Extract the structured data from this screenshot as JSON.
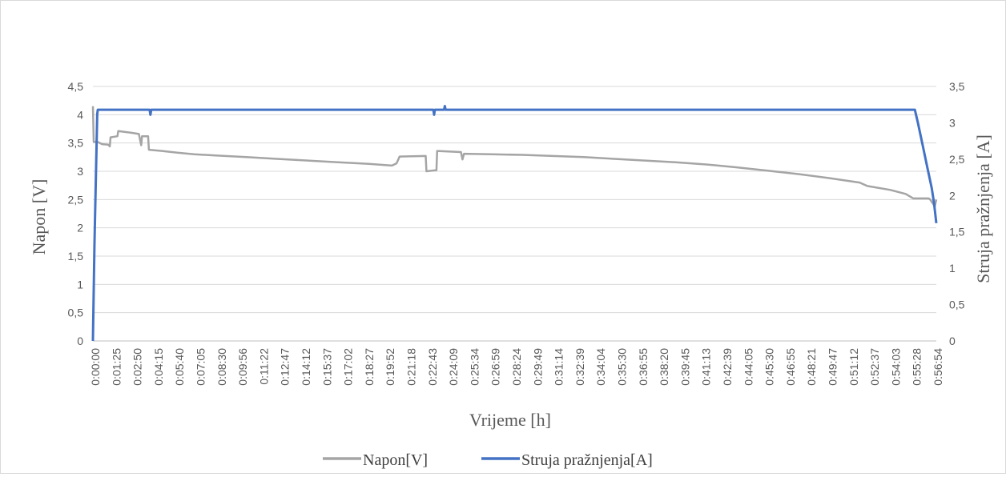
{
  "chart_data": {
    "type": "line",
    "title": "",
    "xlabel": "Vrijeme [h]",
    "ylabel_left": "Napon [V]",
    "ylabel_right": "Struja pražnjenja [A]",
    "ylim_left": [
      0,
      4.5
    ],
    "ylim_right": [
      0,
      3.5
    ],
    "yticks_left": [
      "0",
      "0,5",
      "1",
      "1,5",
      "2",
      "2,5",
      "3",
      "3,5",
      "4",
      "4,5"
    ],
    "yticks_right": [
      "0",
      "0,5",
      "1",
      "1,5",
      "2",
      "2,5",
      "3",
      "3,5"
    ],
    "x_tick_labels": [
      "0:00:00",
      "0:01:25",
      "0:02:50",
      "0:04:15",
      "0:05:40",
      "0:07:05",
      "0:08:30",
      "0:09:56",
      "0:11:22",
      "0:12:47",
      "0:14:12",
      "0:15:37",
      "0:17:02",
      "0:18:27",
      "0:19:52",
      "0:21:18",
      "0:22:43",
      "0:24:09",
      "0:25:34",
      "0:26:59",
      "0:28:24",
      "0:29:49",
      "0:31:14",
      "0:32:39",
      "0:34:04",
      "0:35:30",
      "0:36:55",
      "0:38:20",
      "0:39:45",
      "0:41:13",
      "0:42:39",
      "0:44:05",
      "0:45:30",
      "0:46:55",
      "0:48:21",
      "0:49:47",
      "0:51:12",
      "0:52:37",
      "0:54:03",
      "0:55:28",
      "0:56:54"
    ],
    "grid": true,
    "legend_position": "bottom",
    "series": [
      {
        "name": "Napon[V]",
        "axis": "left",
        "color": "#a5a5a5",
        "points": [
          [
            0.0,
            4.15
          ],
          [
            0.05,
            3.52
          ],
          [
            0.3,
            3.52
          ],
          [
            0.6,
            3.48
          ],
          [
            1.0,
            3.47
          ],
          [
            1.1,
            3.44
          ],
          [
            1.15,
            3.6
          ],
          [
            1.6,
            3.62
          ],
          [
            1.65,
            3.71
          ],
          [
            2.5,
            3.68
          ],
          [
            3.0,
            3.66
          ],
          [
            3.15,
            3.46
          ],
          [
            3.2,
            3.62
          ],
          [
            3.6,
            3.62
          ],
          [
            3.65,
            3.38
          ],
          [
            4.5,
            3.36
          ],
          [
            5.5,
            3.33
          ],
          [
            6.6,
            3.3
          ],
          [
            8.0,
            3.28
          ],
          [
            10.0,
            3.25
          ],
          [
            12.0,
            3.22
          ],
          [
            14.0,
            3.19
          ],
          [
            16.0,
            3.16
          ],
          [
            18.0,
            3.13
          ],
          [
            19.5,
            3.1
          ],
          [
            19.8,
            3.14
          ],
          [
            20.0,
            3.26
          ],
          [
            21.7,
            3.27
          ],
          [
            21.75,
            3.0
          ],
          [
            22.4,
            3.02
          ],
          [
            22.45,
            3.36
          ],
          [
            24.0,
            3.34
          ],
          [
            24.1,
            3.21
          ],
          [
            24.2,
            3.31
          ],
          [
            26.0,
            3.3
          ],
          [
            28.0,
            3.29
          ],
          [
            30.0,
            3.27
          ],
          [
            32.0,
            3.25
          ],
          [
            34.0,
            3.22
          ],
          [
            36.0,
            3.19
          ],
          [
            38.0,
            3.16
          ],
          [
            40.0,
            3.12
          ],
          [
            42.0,
            3.07
          ],
          [
            44.0,
            3.01
          ],
          [
            46.0,
            2.95
          ],
          [
            48.0,
            2.88
          ],
          [
            50.0,
            2.8
          ],
          [
            50.5,
            2.74
          ],
          [
            52.0,
            2.67
          ],
          [
            53.0,
            2.6
          ],
          [
            53.5,
            2.52
          ],
          [
            54.5,
            2.52
          ],
          [
            54.6,
            2.5
          ],
          [
            54.9,
            2.38
          ],
          [
            55.0,
            2.5
          ]
        ]
      },
      {
        "name": "Struja pražnjenja[A]",
        "axis": "right",
        "color": "#4472c4",
        "points": [
          [
            0.0,
            0.0
          ],
          [
            0.1,
            1.3
          ],
          [
            0.2,
            2.3
          ],
          [
            0.28,
            3.12
          ],
          [
            0.32,
            3.18
          ],
          [
            3.7,
            3.18
          ],
          [
            3.75,
            3.11
          ],
          [
            3.8,
            3.18
          ],
          [
            22.2,
            3.18
          ],
          [
            22.25,
            3.11
          ],
          [
            22.3,
            3.18
          ],
          [
            22.9,
            3.18
          ],
          [
            22.95,
            3.23
          ],
          [
            23.0,
            3.18
          ],
          [
            53.6,
            3.18
          ],
          [
            53.8,
            3.0
          ],
          [
            54.1,
            2.7
          ],
          [
            54.4,
            2.4
          ],
          [
            54.7,
            2.1
          ],
          [
            54.85,
            1.9
          ],
          [
            55.0,
            1.62
          ]
        ]
      }
    ]
  }
}
